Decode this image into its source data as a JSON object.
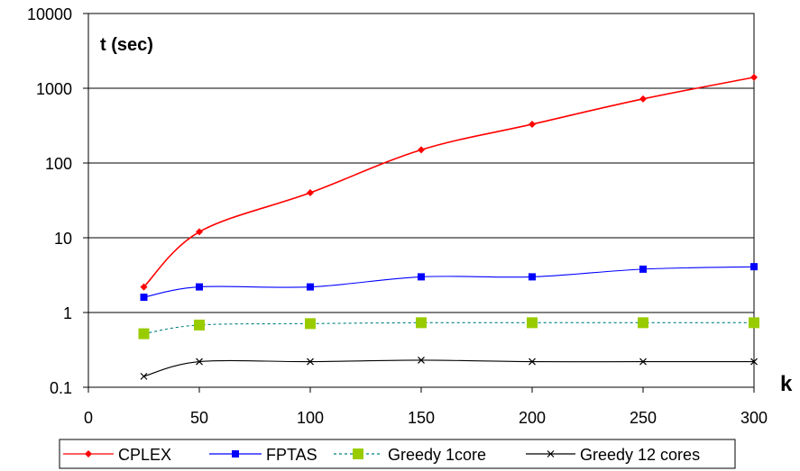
{
  "chart_data": {
    "type": "line",
    "title": "",
    "ylabel": "t (sec)",
    "xlabel": "k",
    "yscale": "log",
    "ylim": [
      0.1,
      10000
    ],
    "xlim": [
      0,
      300
    ],
    "x_ticks": [
      "0",
      "50",
      "100",
      "150",
      "200",
      "250",
      "300"
    ],
    "y_ticks": [
      "0.1",
      "1",
      "10",
      "100",
      "1000",
      "10000"
    ],
    "grid": "horizontal",
    "legend_position": "bottom",
    "x": [
      25,
      50,
      100,
      150,
      200,
      250,
      300
    ],
    "series": [
      {
        "name": "CPLEX",
        "values": [
          2.2,
          12,
          40,
          150,
          330,
          720,
          1400
        ],
        "color": "#ff0000",
        "marker": "diamond",
        "dash": "solid"
      },
      {
        "name": "FPTAS",
        "values": [
          1.6,
          2.2,
          2.2,
          3.0,
          3.0,
          3.8,
          4.1
        ],
        "color": "#0000ff",
        "marker": "square",
        "dash": "solid"
      },
      {
        "name": "Greedy 1core",
        "values": [
          0.52,
          0.68,
          0.71,
          0.73,
          0.73,
          0.73,
          0.73
        ],
        "color": "#99cc00",
        "line_color": "#008080",
        "marker": "square-large",
        "dash": "dashed"
      },
      {
        "name": "Greedy 12 cores",
        "values": [
          0.14,
          0.22,
          0.22,
          0.23,
          0.22,
          0.22,
          0.22
        ],
        "color": "#000000",
        "marker": "x",
        "dash": "solid"
      }
    ]
  }
}
